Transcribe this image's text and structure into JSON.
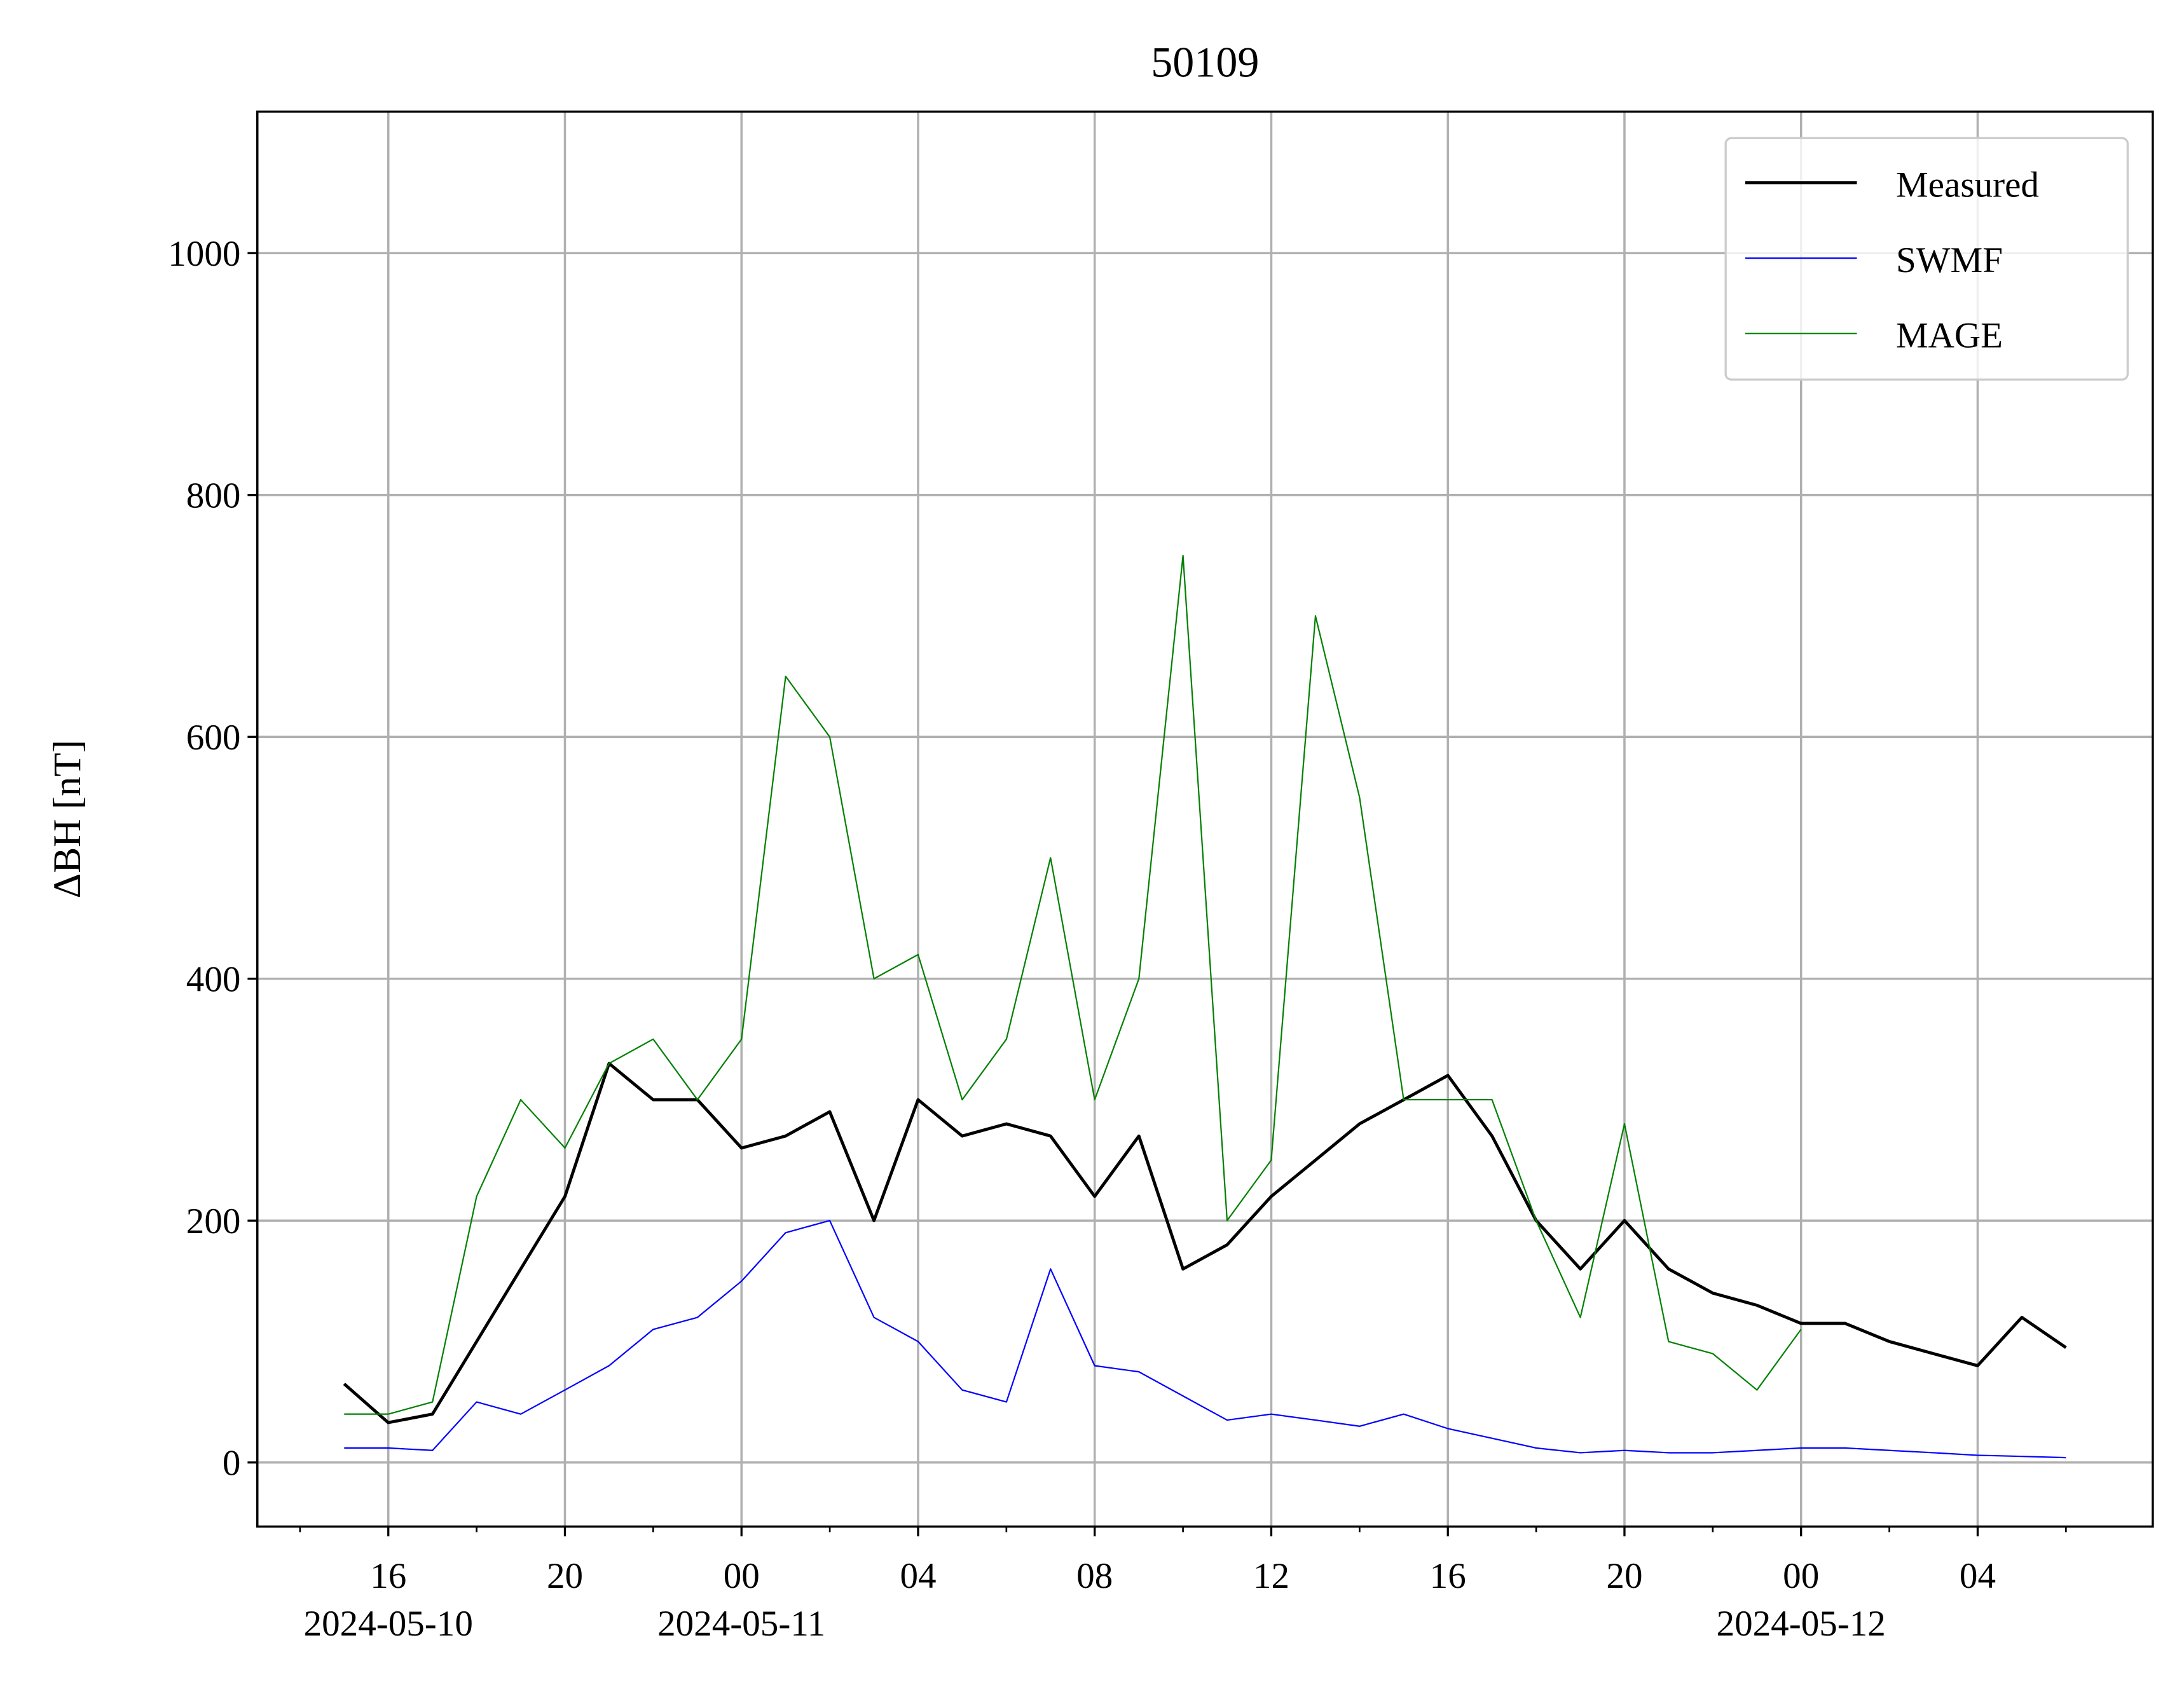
{
  "chart_data": {
    "type": "line",
    "title": "50109",
    "ylabel": "ΔBH [nT]",
    "x": [
      "2024-05-10 15:00",
      "2024-05-10 16:00",
      "2024-05-10 17:00",
      "2024-05-10 18:00",
      "2024-05-10 19:00",
      "2024-05-10 20:00",
      "2024-05-10 21:00",
      "2024-05-10 22:00",
      "2024-05-10 23:00",
      "2024-05-11 00:00",
      "2024-05-11 01:00",
      "2024-05-11 02:00",
      "2024-05-11 03:00",
      "2024-05-11 04:00",
      "2024-05-11 05:00",
      "2024-05-11 06:00",
      "2024-05-11 07:00",
      "2024-05-11 08:00",
      "2024-05-11 09:00",
      "2024-05-11 10:00",
      "2024-05-11 11:00",
      "2024-05-11 12:00",
      "2024-05-11 13:00",
      "2024-05-11 14:00",
      "2024-05-11 15:00",
      "2024-05-11 16:00",
      "2024-05-11 17:00",
      "2024-05-11 18:00",
      "2024-05-11 19:00",
      "2024-05-11 20:00",
      "2024-05-11 21:00",
      "2024-05-11 22:00",
      "2024-05-11 23:00",
      "2024-05-12 00:00",
      "2024-05-12 01:00",
      "2024-05-12 02:00",
      "2024-05-12 03:00",
      "2024-05-12 04:00",
      "2024-05-12 05:00",
      "2024-05-12 06:00"
    ],
    "series": [
      {
        "name": "Measured",
        "color": "#000000",
        "values": [
          65,
          33,
          40,
          100,
          160,
          220,
          330,
          300,
          300,
          260,
          270,
          290,
          200,
          300,
          270,
          280,
          270,
          220,
          270,
          160,
          180,
          220,
          250,
          280,
          300,
          320,
          270,
          200,
          160,
          200,
          160,
          140,
          130,
          115,
          115,
          100,
          90,
          80,
          120,
          95
        ]
      },
      {
        "name": "SWMF",
        "color": "#0000ff",
        "values": [
          12,
          12,
          10,
          50,
          40,
          60,
          80,
          110,
          120,
          150,
          190,
          200,
          120,
          100,
          60,
          50,
          160,
          80,
          75,
          55,
          35,
          40,
          35,
          30,
          40,
          28,
          20,
          12,
          8,
          10,
          8,
          8,
          10,
          12,
          12,
          10,
          8,
          6,
          5,
          4
        ]
      },
      {
        "name": "MAGE",
        "color": "#008000",
        "values": [
          40,
          40,
          50,
          220,
          300,
          260,
          330,
          350,
          300,
          350,
          650,
          600,
          400,
          420,
          300,
          350,
          500,
          300,
          400,
          750,
          200,
          250,
          700,
          550,
          300,
          300,
          300,
          200,
          120,
          280,
          100,
          90,
          60,
          110,
          null,
          null,
          null,
          null,
          null,
          null
        ]
      }
    ],
    "xlim": [
      "2024-05-10 13:02",
      "2024-05-12 07:58"
    ],
    "xticks": [
      {
        "value": "2024-05-10 16:00",
        "label": "16\n2024-05-10"
      },
      {
        "value": "2024-05-10 20:00",
        "label": "20"
      },
      {
        "value": "2024-05-11 00:00",
        "label": "00\n2024-05-11"
      },
      {
        "value": "2024-05-11 04:00",
        "label": "04"
      },
      {
        "value": "2024-05-11 08:00",
        "label": "08"
      },
      {
        "value": "2024-05-11 12:00",
        "label": "12"
      },
      {
        "value": "2024-05-11 16:00",
        "label": "16"
      },
      {
        "value": "2024-05-11 20:00",
        "label": "20"
      },
      {
        "value": "2024-05-12 00:00",
        "label": "00\n2024-05-12"
      },
      {
        "value": "2024-05-12 04:00",
        "label": "04"
      }
    ],
    "xminorticks": [
      "2024-05-10 14:00",
      "2024-05-10 18:00",
      "2024-05-10 22:00",
      "2024-05-11 02:00",
      "2024-05-11 06:00",
      "2024-05-11 10:00",
      "2024-05-11 14:00",
      "2024-05-11 18:00",
      "2024-05-11 22:00",
      "2024-05-12 02:00",
      "2024-05-12 06:00"
    ],
    "ylim": [
      -53,
      1117
    ],
    "yticks": [
      0,
      200,
      400,
      600,
      800,
      1000
    ],
    "grid": true,
    "legend": "upper right"
  }
}
